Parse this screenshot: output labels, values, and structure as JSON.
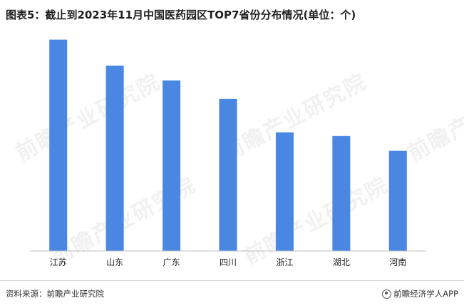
{
  "title": "图表5：截止到2023年11月中国医药园区TOP7省份分布情况(单位：个)",
  "footer": {
    "source": "资料来源：前瞻产业研究院",
    "brand": "前瞻经济学人APP"
  },
  "watermark": "前瞻产业研究院",
  "colors": {
    "bar": "#4a87e2",
    "axis": "#bfbfbf",
    "text": "#222222"
  },
  "chart_data": {
    "type": "bar",
    "title": "图表5：截止到2023年11月中国医药园区TOP7省份分布情况(单位：个)",
    "categories": [
      "江苏",
      "山东",
      "广东",
      "四川",
      "浙江",
      "湖北",
      "河南"
    ],
    "values": [
      57,
      50,
      46,
      41,
      32,
      31,
      27
    ],
    "xlabel": "",
    "ylabel": "",
    "ylim": [
      0,
      60
    ],
    "grid": false,
    "legend": "none"
  }
}
